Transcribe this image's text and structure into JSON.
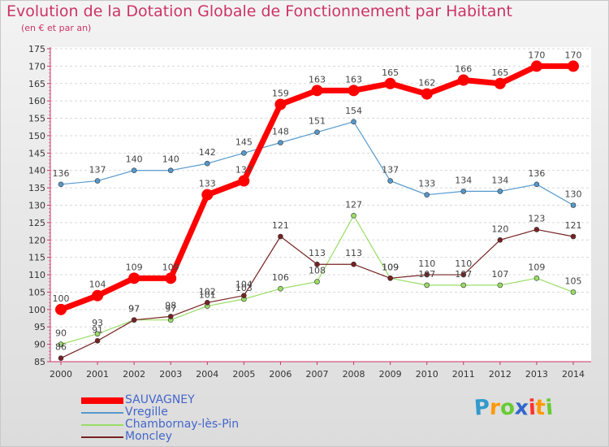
{
  "header": {
    "title": "Evolution de la Dotation Globale de Fonctionnement par Habitant",
    "subtitle": "(en € et par an)"
  },
  "brand": {
    "letters": [
      "P",
      "r",
      "o",
      "x",
      "i",
      "t",
      "i"
    ],
    "colors": [
      "#3399cc",
      "#ff9900",
      "#66cc33",
      "#3366cc",
      "#ff3333",
      "#ff9900",
      "#66cc33"
    ]
  },
  "chart_data": {
    "type": "line",
    "title": "Evolution de la Dotation Globale de Fonctionnement par Habitant",
    "subtitle": "(en € et par an)",
    "x": [
      "2000",
      "2001",
      "2002",
      "2003",
      "2004",
      "2005",
      "2006",
      "2007",
      "2008",
      "2009",
      "2010",
      "2011",
      "2012",
      "2013",
      "2014"
    ],
    "yticks": [
      85,
      90,
      95,
      100,
      105,
      110,
      115,
      120,
      125,
      130,
      135,
      140,
      145,
      150,
      155,
      160,
      165,
      170,
      175
    ],
    "ylim": [
      85,
      175
    ],
    "grid": "horizontal dashed",
    "legend_position": "bottom-left",
    "series": [
      {
        "name": "SAUVAGNEY",
        "color": "#ff0000",
        "values": [
          100,
          104,
          109,
          109,
          133,
          137,
          159,
          163,
          163,
          165,
          162,
          166,
          165,
          170,
          170
        ]
      },
      {
        "name": "Vregille",
        "color": "#5599cc",
        "values": [
          136,
          137,
          140,
          140,
          142,
          145,
          148,
          151,
          154,
          137,
          133,
          134,
          134,
          136,
          130
        ]
      },
      {
        "name": "Chambornay-lès-Pin",
        "color": "#99dd66",
        "values": [
          90,
          93,
          97,
          97,
          101,
          103,
          106,
          108,
          127,
          109,
          107,
          107,
          107,
          109,
          105
        ]
      },
      {
        "name": "Moncley",
        "color": "#772222",
        "values": [
          86,
          91,
          97,
          98,
          102,
          104,
          121,
          113,
          113,
          109,
          110,
          110,
          120,
          123,
          121
        ]
      }
    ]
  }
}
